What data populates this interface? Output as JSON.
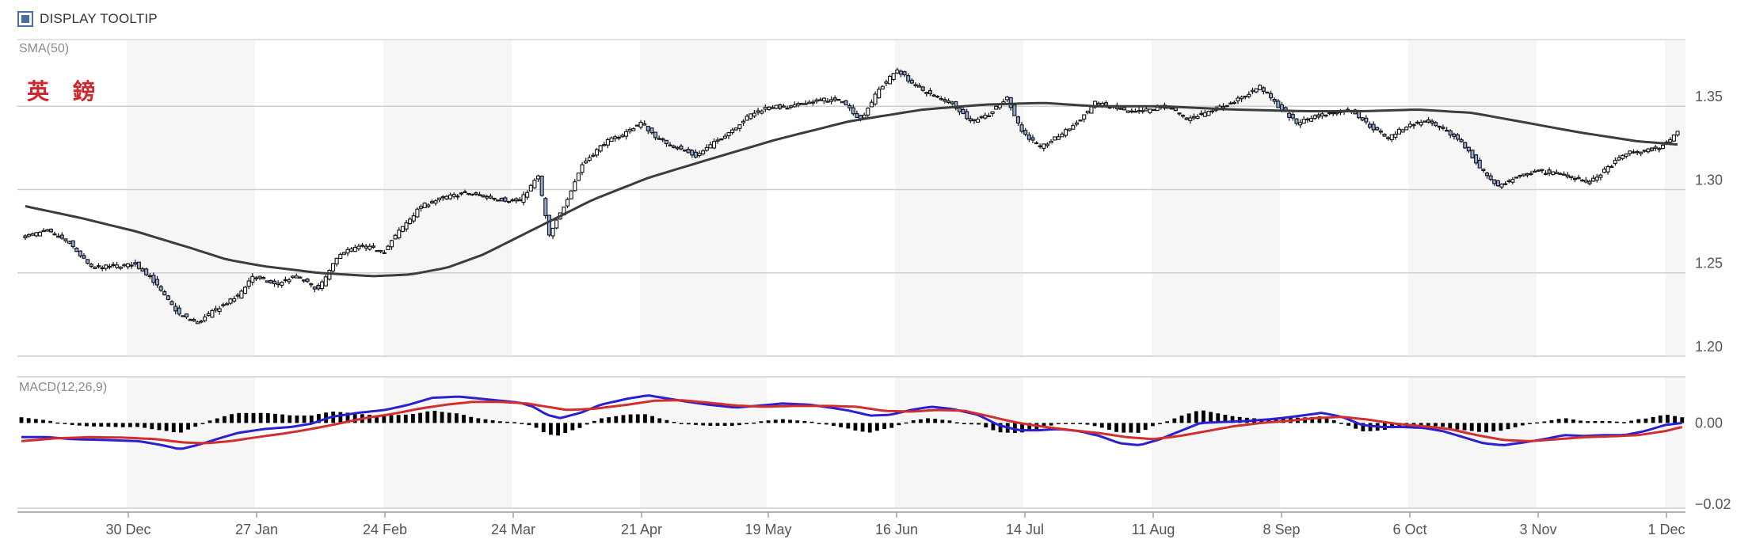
{
  "controls": {
    "tooltip_label": "DISPLAY TOOLTIP",
    "tooltip_checked": true
  },
  "chart_data": [
    {
      "type": "candlestick",
      "title": "",
      "annotation": "英 鎊",
      "indicator_label": "SMA(50)",
      "ylim": [
        1.2,
        1.39
      ],
      "yticks": [
        1.2,
        1.25,
        1.3,
        1.35
      ],
      "ytick_labels": [
        "1.20",
        "1.25",
        "1.30",
        "1.35"
      ],
      "grid": true,
      "up_color": "#ffffff",
      "down_color": "#8ea9d8",
      "sma_color": "#3c3c3c",
      "close_anchors": [
        [
          0,
          1.272
        ],
        [
          6,
          1.275
        ],
        [
          12,
          1.268
        ],
        [
          18,
          1.253
        ],
        [
          24,
          1.254
        ],
        [
          30,
          1.255
        ],
        [
          34,
          1.248
        ],
        [
          38,
          1.236
        ],
        [
          42,
          1.225
        ],
        [
          47,
          1.22
        ],
        [
          52,
          1.228
        ],
        [
          58,
          1.236
        ],
        [
          62,
          1.248
        ],
        [
          68,
          1.243
        ],
        [
          74,
          1.248
        ],
        [
          80,
          1.24
        ],
        [
          86,
          1.262
        ],
        [
          92,
          1.266
        ],
        [
          98,
          1.263
        ],
        [
          102,
          1.275
        ],
        [
          108,
          1.29
        ],
        [
          114,
          1.295
        ],
        [
          120,
          1.298
        ],
        [
          125,
          1.296
        ],
        [
          130,
          1.294
        ],
        [
          135,
          1.293
        ],
        [
          140,
          1.308
        ],
        [
          143,
          1.272
        ],
        [
          147,
          1.29
        ],
        [
          152,
          1.315
        ],
        [
          158,
          1.328
        ],
        [
          163,
          1.333
        ],
        [
          168,
          1.34
        ],
        [
          173,
          1.33
        ],
        [
          178,
          1.325
        ],
        [
          183,
          1.32
        ],
        [
          188,
          1.328
        ],
        [
          193,
          1.336
        ],
        [
          198,
          1.345
        ],
        [
          203,
          1.35
        ],
        [
          208,
          1.349
        ],
        [
          213,
          1.352
        ],
        [
          218,
          1.354
        ],
        [
          223,
          1.353
        ],
        [
          228,
          1.342
        ],
        [
          233,
          1.36
        ],
        [
          238,
          1.372
        ],
        [
          243,
          1.362
        ],
        [
          248,
          1.356
        ],
        [
          253,
          1.352
        ],
        [
          258,
          1.341
        ],
        [
          263,
          1.345
        ],
        [
          268,
          1.355
        ],
        [
          272,
          1.335
        ],
        [
          277,
          1.325
        ],
        [
          282,
          1.332
        ],
        [
          287,
          1.34
        ],
        [
          292,
          1.352
        ],
        [
          297,
          1.349
        ],
        [
          302,
          1.346
        ],
        [
          307,
          1.348
        ],
        [
          312,
          1.35
        ],
        [
          317,
          1.342
        ],
        [
          322,
          1.346
        ],
        [
          327,
          1.35
        ],
        [
          332,
          1.355
        ],
        [
          337,
          1.362
        ],
        [
          342,
          1.35
        ],
        [
          347,
          1.34
        ],
        [
          352,
          1.344
        ],
        [
          357,
          1.346
        ],
        [
          362,
          1.348
        ],
        [
          367,
          1.338
        ],
        [
          372,
          1.331
        ],
        [
          377,
          1.338
        ],
        [
          382,
          1.341
        ],
        [
          387,
          1.336
        ],
        [
          392,
          1.329
        ],
        [
          397,
          1.313
        ],
        [
          402,
          1.302
        ],
        [
          407,
          1.307
        ],
        [
          412,
          1.311
        ],
        [
          417,
          1.31
        ],
        [
          422,
          1.308
        ],
        [
          427,
          1.304
        ],
        [
          432,
          1.313
        ],
        [
          437,
          1.322
        ],
        [
          442,
          1.323
        ],
        [
          447,
          1.326
        ],
        [
          451,
          1.335
        ]
      ],
      "sma_anchors": [
        [
          0,
          1.29
        ],
        [
          15,
          1.283
        ],
        [
          30,
          1.275
        ],
        [
          45,
          1.265
        ],
        [
          55,
          1.258
        ],
        [
          65,
          1.254
        ],
        [
          80,
          1.25
        ],
        [
          95,
          1.248
        ],
        [
          105,
          1.249
        ],
        [
          115,
          1.253
        ],
        [
          125,
          1.261
        ],
        [
          135,
          1.272
        ],
        [
          145,
          1.283
        ],
        [
          155,
          1.294
        ],
        [
          170,
          1.307
        ],
        [
          185,
          1.317
        ],
        [
          205,
          1.33
        ],
        [
          225,
          1.341
        ],
        [
          245,
          1.348
        ],
        [
          262,
          1.351
        ],
        [
          278,
          1.352
        ],
        [
          292,
          1.35
        ],
        [
          310,
          1.35
        ],
        [
          330,
          1.348
        ],
        [
          350,
          1.347
        ],
        [
          365,
          1.347
        ],
        [
          380,
          1.348
        ],
        [
          395,
          1.346
        ],
        [
          410,
          1.34
        ],
        [
          425,
          1.334
        ],
        [
          440,
          1.329
        ],
        [
          451,
          1.327
        ]
      ]
    },
    {
      "type": "macd",
      "indicator_label": "MACD(12,26,9)",
      "ylim": [
        -0.021,
        0.011
      ],
      "yticks": [
        0.0,
        -0.02
      ],
      "ytick_labels": [
        "0.00",
        "−0.02"
      ],
      "macd_color": "#2b1fd1",
      "signal_color": "#d12e2e",
      "histogram_color": "#000000",
      "macd_anchors": [
        [
          0,
          -0.0035
        ],
        [
          8,
          -0.0035
        ],
        [
          15,
          -0.004
        ],
        [
          25,
          -0.0042
        ],
        [
          35,
          -0.0045
        ],
        [
          42,
          -0.0055
        ],
        [
          47,
          -0.0065
        ],
        [
          52,
          -0.0055
        ],
        [
          58,
          -0.004
        ],
        [
          64,
          -0.0025
        ],
        [
          72,
          -0.0015
        ],
        [
          80,
          -0.001
        ],
        [
          86,
          -0.0002
        ],
        [
          92,
          0.0015
        ],
        [
          100,
          0.0025
        ],
        [
          108,
          0.0032
        ],
        [
          115,
          0.0045
        ],
        [
          122,
          0.0062
        ],
        [
          130,
          0.0065
        ],
        [
          136,
          0.006
        ],
        [
          142,
          0.0055
        ],
        [
          148,
          0.005
        ],
        [
          152,
          0.004
        ],
        [
          156,
          0.002
        ],
        [
          160,
          0.0012
        ],
        [
          166,
          0.0025
        ],
        [
          172,
          0.0045
        ],
        [
          180,
          0.006
        ],
        [
          186,
          0.0068
        ],
        [
          192,
          0.006
        ],
        [
          198,
          0.0052
        ],
        [
          204,
          0.0045
        ],
        [
          212,
          0.0038
        ],
        [
          218,
          0.0042
        ],
        [
          226,
          0.0048
        ],
        [
          234,
          0.0045
        ],
        [
          240,
          0.0038
        ],
        [
          246,
          0.003
        ],
        [
          252,
          0.0018
        ],
        [
          258,
          0.002
        ],
        [
          264,
          0.0032
        ],
        [
          270,
          0.004
        ],
        [
          276,
          0.0035
        ],
        [
          284,
          0.002
        ],
        [
          290,
          -0.0005
        ],
        [
          296,
          -0.0018
        ],
        [
          302,
          -0.0018
        ],
        [
          308,
          -0.0015
        ],
        [
          314,
          -0.002
        ],
        [
          320,
          -0.0032
        ],
        [
          326,
          -0.005
        ],
        [
          332,
          -0.0055
        ],
        [
          338,
          -0.004
        ],
        [
          344,
          -0.002
        ],
        [
          350,
          0.0
        ],
        [
          356,
          0.0002
        ],
        [
          364,
          0.0005
        ],
        [
          372,
          0.001
        ],
        [
          380,
          0.0018
        ],
        [
          386,
          0.0025
        ],
        [
          392,
          0.0015
        ],
        [
          398,
          -0.0005
        ],
        [
          404,
          -0.001
        ],
        [
          410,
          -0.001
        ],
        [
          416,
          -0.0012
        ],
        [
          422,
          -0.002
        ],
        [
          428,
          -0.0035
        ],
        [
          434,
          -0.005
        ],
        [
          440,
          -0.0055
        ],
        [
          446,
          -0.0048
        ],
        [
          452,
          -0.004
        ],
        [
          458,
          -0.003
        ],
        [
          464,
          -0.0032
        ],
        [
          470,
          -0.003
        ],
        [
          476,
          -0.003
        ],
        [
          482,
          -0.002
        ],
        [
          488,
          -0.0005
        ],
        [
          493,
          0.0
        ]
      ],
      "signal_anchors": [
        [
          0,
          -0.0045
        ],
        [
          10,
          -0.0038
        ],
        [
          20,
          -0.0035
        ],
        [
          30,
          -0.0036
        ],
        [
          40,
          -0.004
        ],
        [
          48,
          -0.0048
        ],
        [
          55,
          -0.005
        ],
        [
          62,
          -0.0045
        ],
        [
          70,
          -0.0035
        ],
        [
          78,
          -0.0026
        ],
        [
          86,
          -0.0015
        ],
        [
          94,
          -0.0002
        ],
        [
          102,
          0.0012
        ],
        [
          110,
          0.0022
        ],
        [
          118,
          0.0035
        ],
        [
          126,
          0.0045
        ],
        [
          134,
          0.0052
        ],
        [
          142,
          0.0052
        ],
        [
          150,
          0.0048
        ],
        [
          156,
          0.004
        ],
        [
          162,
          0.0032
        ],
        [
          170,
          0.0035
        ],
        [
          180,
          0.0045
        ],
        [
          188,
          0.0055
        ],
        [
          196,
          0.0056
        ],
        [
          204,
          0.005
        ],
        [
          212,
          0.0043
        ],
        [
          220,
          0.004
        ],
        [
          230,
          0.0042
        ],
        [
          240,
          0.0042
        ],
        [
          248,
          0.004
        ],
        [
          256,
          0.003
        ],
        [
          264,
          0.0028
        ],
        [
          272,
          0.0032
        ],
        [
          280,
          0.003
        ],
        [
          288,
          0.0015
        ],
        [
          296,
          0.0
        ],
        [
          304,
          -0.001
        ],
        [
          312,
          -0.0018
        ],
        [
          320,
          -0.0025
        ],
        [
          328,
          -0.0035
        ],
        [
          336,
          -0.004
        ],
        [
          344,
          -0.0032
        ],
        [
          352,
          -0.002
        ],
        [
          360,
          -0.0008
        ],
        [
          368,
          0.0
        ],
        [
          376,
          0.0005
        ],
        [
          384,
          0.0012
        ],
        [
          392,
          0.0015
        ],
        [
          400,
          0.0008
        ],
        [
          408,
          -0.0002
        ],
        [
          416,
          -0.0008
        ],
        [
          424,
          -0.0015
        ],
        [
          432,
          -0.003
        ],
        [
          440,
          -0.0042
        ],
        [
          448,
          -0.0045
        ],
        [
          456,
          -0.004
        ],
        [
          464,
          -0.0035
        ],
        [
          472,
          -0.0033
        ],
        [
          480,
          -0.003
        ],
        [
          488,
          -0.002
        ],
        [
          493,
          -0.001
        ]
      ]
    }
  ],
  "x_axis": {
    "ticks": [
      "30 Dec",
      "27 Jan",
      "24 Feb",
      "24 Mar",
      "21 Apr",
      "19 May",
      "16 Jun",
      "14 Jul",
      "11 Aug",
      "8 Sep",
      "6 Oct",
      "3 Nov",
      "1 Dec"
    ]
  }
}
